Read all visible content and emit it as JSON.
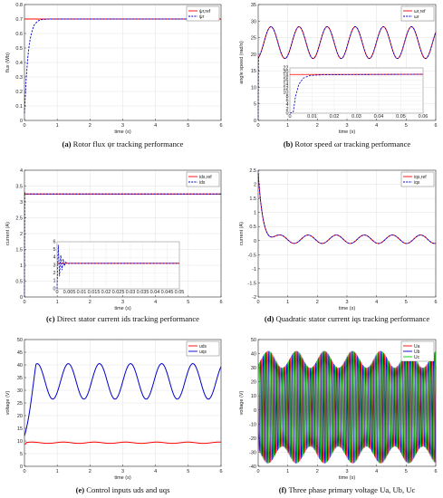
{
  "chart_data": [
    {
      "id": "a",
      "type": "line",
      "caption_tag": "(a)",
      "caption": "Rotor flux ψr tracking performance",
      "xlabel": "time (s)",
      "ylabel": "flux (Wb)",
      "xlim": [
        0,
        6
      ],
      "ylim": [
        0,
        0.8
      ],
      "xticks": [
        0,
        1,
        2,
        3,
        4,
        5,
        6
      ],
      "xtick_labels": [
        "0",
        "1",
        "2",
        "3",
        "4",
        "5",
        "6"
      ],
      "yticks": [
        0,
        0.1,
        0.2,
        0.3,
        0.4,
        0.5,
        0.6,
        0.7,
        0.8
      ],
      "ytick_labels": [
        "0",
        "0.1",
        "0.2",
        "0.3",
        "0.4",
        "0.5",
        "0.6",
        "0.7",
        "0.8"
      ],
      "grid": true,
      "legend": "top-right",
      "series": [
        {
          "name": "ψr,ref",
          "color": "#ff0000",
          "style": "solid",
          "points": [
            [
              0,
              0.7
            ],
            [
              6,
              0.7
            ]
          ]
        },
        {
          "name": "ψr",
          "color": "#0000cc",
          "style": "dashed",
          "points": [
            [
              0,
              0.05
            ],
            [
              0.05,
              0.28
            ],
            [
              0.1,
              0.43
            ],
            [
              0.15,
              0.53
            ],
            [
              0.2,
              0.59
            ],
            [
              0.25,
              0.63
            ],
            [
              0.3,
              0.66
            ],
            [
              0.4,
              0.685
            ],
            [
              0.5,
              0.695
            ],
            [
              0.7,
              0.7
            ],
            [
              6,
              0.7
            ]
          ]
        }
      ]
    },
    {
      "id": "b",
      "type": "line",
      "caption_tag": "(b)",
      "caption": "Rotor speed ωr tracking performance",
      "xlabel": "time (s)",
      "ylabel": "angle speed (rad/s)",
      "xlim": [
        0,
        6
      ],
      "ylim": [
        0,
        35
      ],
      "xticks": [
        0,
        1,
        2,
        3,
        4,
        5,
        6
      ],
      "xtick_labels": [
        "0",
        "1",
        "2",
        "3",
        "4",
        "5",
        "6"
      ],
      "yticks": [
        0,
        5,
        10,
        15,
        20,
        25,
        30,
        35
      ],
      "ytick_labels": [
        "0",
        "5",
        "10",
        "15",
        "20",
        "25",
        "30",
        "35"
      ],
      "grid": true,
      "legend": "top-right",
      "wave": {
        "center": 23.5,
        "amplitude": 4.8,
        "period": 0.95,
        "start": 0.05
      },
      "series": [
        {
          "name": "ωr,ref",
          "color": "#ff0000",
          "style": "solid"
        },
        {
          "name": "ωr",
          "color": "#0000cc",
          "style": "dashed"
        }
      ],
      "inset": {
        "xlim": [
          0,
          0.06
        ],
        "ylim": [
          0,
          22
        ],
        "xticks": [
          0,
          0.01,
          0.02,
          0.03,
          0.04,
          0.05,
          0.06
        ],
        "xtick_labels": [
          "0",
          "0.01",
          "0.02",
          "0.03",
          "0.04",
          "0.05",
          "0.06"
        ],
        "yticks": [
          0,
          2,
          4,
          6,
          8,
          10,
          12,
          14,
          16,
          18,
          20,
          22
        ],
        "ytick_labels": [
          "0",
          "2",
          "4",
          "6",
          "8",
          "10",
          "12",
          "14",
          "16",
          "18",
          "20",
          "22"
        ],
        "series": [
          {
            "color": "#ff0000",
            "style": "solid",
            "points": [
              [
                0,
                18.8
              ],
              [
                0.06,
                18.9
              ]
            ]
          },
          {
            "color": "#0000cc",
            "style": "dashed",
            "points": [
              [
                0,
                0
              ],
              [
                0.0015,
                0.5
              ],
              [
                0.0025,
                8
              ],
              [
                0.004,
                14
              ],
              [
                0.006,
                17
              ],
              [
                0.009,
                18.3
              ],
              [
                0.015,
                18.7
              ],
              [
                0.06,
                18.9
              ]
            ]
          }
        ]
      }
    },
    {
      "id": "c",
      "type": "line",
      "caption_tag": "(c)",
      "caption": "Direct stator current ids tracking performance",
      "xlabel": "time (s)",
      "ylabel": "current (A)",
      "xlim": [
        0,
        6
      ],
      "ylim": [
        0,
        4
      ],
      "xticks": [
        0,
        1,
        2,
        3,
        4,
        5,
        6
      ],
      "xtick_labels": [
        "0",
        "1",
        "2",
        "3",
        "4",
        "5",
        "6"
      ],
      "yticks": [
        0,
        0.5,
        1,
        1.5,
        2,
        2.5,
        3,
        3.5,
        4
      ],
      "ytick_labels": [
        "0",
        "0.5",
        "1",
        "1.5",
        "2",
        "2.5",
        "3",
        "3.5",
        "4"
      ],
      "grid": true,
      "legend": "top-right",
      "series": [
        {
          "name": "ids,ref",
          "color": "#ff0000",
          "style": "solid",
          "points": [
            [
              0,
              3.25
            ],
            [
              6,
              3.25
            ]
          ]
        },
        {
          "name": "ids",
          "color": "#0000cc",
          "style": "dashed",
          "points": [
            [
              0,
              0
            ],
            [
              0.01,
              3.3
            ],
            [
              0.02,
              3.25
            ],
            [
              6,
              3.25
            ]
          ]
        }
      ],
      "inset": {
        "xlim": [
          0,
          0.05
        ],
        "ylim": [
          0,
          6
        ],
        "xticks": [
          0,
          0.005,
          0.01,
          0.015,
          0.02,
          0.025,
          0.03,
          0.035,
          0.04,
          0.045,
          0.05
        ],
        "xtick_labels": [
          "0",
          "0.005",
          "0.01",
          "0.015",
          "0.02",
          "0.025",
          "0.03",
          "0.035",
          "0.04",
          "0.045",
          "0.05"
        ],
        "yticks": [
          0,
          1,
          2,
          3,
          4,
          5,
          6
        ],
        "ytick_labels": [
          "0",
          "1",
          "2",
          "3",
          "4",
          "5",
          "6"
        ],
        "series": [
          {
            "color": "#ff0000",
            "style": "solid",
            "points": [
              [
                0,
                3.25
              ],
              [
                0.05,
                3.25
              ]
            ]
          },
          {
            "color": "#0000cc",
            "style": "dashed",
            "points": [
              [
                0,
                0
              ],
              [
                0.0005,
                5.6
              ],
              [
                0.001,
                1.6
              ],
              [
                0.0015,
                4.3
              ],
              [
                0.002,
                2.4
              ],
              [
                0.0025,
                3.8
              ],
              [
                0.003,
                2.9
              ],
              [
                0.0035,
                3.4
              ],
              [
                0.004,
                3.2
              ],
              [
                0.005,
                3.25
              ],
              [
                0.05,
                3.25
              ]
            ]
          }
        ]
      }
    },
    {
      "id": "d",
      "type": "line",
      "caption_tag": "(d)",
      "caption": "Quadratic stator current iqs tracking performance",
      "xlabel": "time (s)",
      "ylabel": "current (A)",
      "xlim": [
        0,
        6
      ],
      "ylim": [
        -2,
        2.5
      ],
      "xticks": [
        0,
        1,
        2,
        3,
        4,
        5,
        6
      ],
      "xtick_labels": [
        "0",
        "1",
        "2",
        "3",
        "4",
        "5",
        "6"
      ],
      "yticks": [
        -2,
        -1.5,
        -1,
        -0.5,
        0,
        0.5,
        1,
        1.5,
        2,
        2.5
      ],
      "ytick_labels": [
        "-2",
        "-1.5",
        "-1",
        "-0.5",
        "0",
        "0.5",
        "1",
        "1.5",
        "2",
        "2.5"
      ],
      "grid": true,
      "legend": "top-right",
      "decay": {
        "peak": 2.4,
        "offset": 0.05,
        "tau": 0.15,
        "amplitude": 0.15,
        "period": 0.95
      },
      "series": [
        {
          "name": "iqs,ref",
          "color": "#ff0000",
          "style": "solid"
        },
        {
          "name": "iqs",
          "color": "#0000cc",
          "style": "dashed"
        }
      ]
    },
    {
      "id": "e",
      "type": "line",
      "caption_tag": "(e)",
      "caption": "Control inputs uds and uqs",
      "xlabel": "time (s)",
      "ylabel": "voltage (V)",
      "xlim": [
        0,
        6
      ],
      "ylim": [
        0,
        50
      ],
      "xticks": [
        0,
        1,
        2,
        3,
        4,
        5,
        6
      ],
      "xtick_labels": [
        "0",
        "1",
        "2",
        "3",
        "4",
        "5",
        "6"
      ],
      "yticks": [
        0,
        5,
        10,
        15,
        20,
        25,
        30,
        35,
        40,
        45,
        50
      ],
      "ytick_labels": [
        "0",
        "5",
        "10",
        "15",
        "20",
        "25",
        "30",
        "35",
        "40",
        "45",
        "50"
      ],
      "grid": true,
      "legend": "top-right",
      "series": [
        {
          "name": "uds",
          "color": "#ff0000",
          "style": "solid",
          "level": 9.3
        },
        {
          "name": "uqs",
          "color": "#0000cc",
          "style": "solid",
          "center": 33.5,
          "amplitude": 7,
          "period": 0.95
        }
      ]
    },
    {
      "id": "f",
      "type": "line",
      "caption_tag": "(f)",
      "caption": "Three phase primary voltage Ua, Ub, Uc",
      "xlabel": "time (s)",
      "ylabel": "voltage (V)",
      "xlim": [
        0,
        6
      ],
      "ylim": [
        -40,
        50
      ],
      "xticks": [
        0,
        1,
        2,
        3,
        4,
        5,
        6
      ],
      "xtick_labels": [
        "0",
        "1",
        "2",
        "3",
        "4",
        "5",
        "6"
      ],
      "yticks": [
        -40,
        -30,
        -20,
        -10,
        0,
        10,
        20,
        30,
        40,
        50
      ],
      "ytick_labels": [
        "-40",
        "-30",
        "-20",
        "-10",
        "0",
        "10",
        "20",
        "30",
        "40",
        "50"
      ],
      "grid": true,
      "legend": "top-right",
      "envelope": {
        "center": 34,
        "amplitude": 6,
        "period": 0.95
      },
      "series": [
        {
          "name": "Ua",
          "color": "#ff0000",
          "style": "solid"
        },
        {
          "name": "Ub",
          "color": "#0000cc",
          "style": "solid"
        },
        {
          "name": "Uc",
          "color": "#00cc00",
          "style": "solid"
        }
      ]
    }
  ]
}
